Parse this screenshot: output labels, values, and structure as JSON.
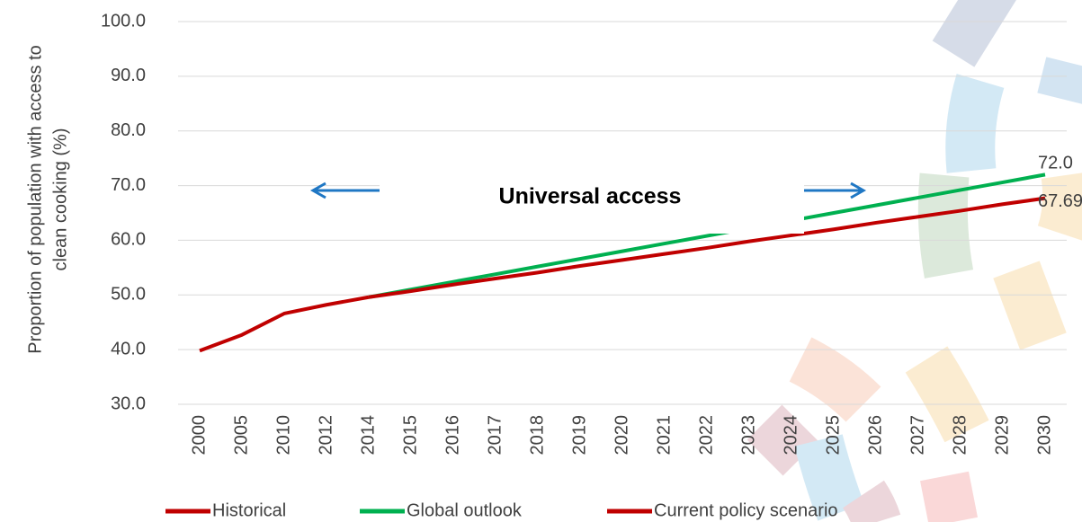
{
  "chart_data": {
    "type": "line",
    "y_label": [
      "Proportion of population with access to",
      "clean cooking (%)"
    ],
    "annotation": "Universal access",
    "categories": [
      "2000",
      "2005",
      "2010",
      "2012",
      "2014",
      "2015",
      "2016",
      "2017",
      "2018",
      "2019",
      "2020",
      "2021",
      "2022",
      "2023",
      "2024",
      "2025",
      "2026",
      "2027",
      "2028",
      "2029",
      "2030"
    ],
    "series": [
      {
        "name": "Historical",
        "color": "#c00000",
        "values": [
          39.8,
          42.7,
          46.6,
          48.2,
          49.6,
          null,
          null,
          null,
          null,
          null,
          null,
          null,
          null,
          null,
          null,
          null,
          null,
          null,
          null,
          null,
          null
        ]
      },
      {
        "name": "Global outlook",
        "color": "#00b050",
        "values": [
          null,
          null,
          null,
          null,
          49.6,
          51.0,
          52.4,
          53.8,
          55.2,
          56.6,
          58.0,
          59.4,
          60.8,
          62.2,
          63.6,
          65.0,
          66.4,
          67.8,
          69.2,
          70.6,
          72.0
        ],
        "value_labels": [
          null,
          null,
          null,
          null,
          null,
          null,
          null,
          null,
          null,
          null,
          null,
          null,
          null,
          null,
          null,
          null,
          null,
          null,
          null,
          null,
          "72.0"
        ]
      },
      {
        "name": "Current policy scenario",
        "color": "#c00000",
        "values": [
          null,
          null,
          null,
          null,
          49.6,
          50.7,
          51.9,
          53.0,
          54.1,
          55.3,
          56.4,
          57.5,
          58.6,
          59.8,
          60.9,
          62.0,
          63.2,
          64.3,
          65.4,
          66.6,
          67.69
        ],
        "value_labels": [
          null,
          null,
          null,
          null,
          null,
          null,
          null,
          null,
          null,
          null,
          null,
          null,
          null,
          null,
          null,
          null,
          null,
          null,
          null,
          null,
          "67.69"
        ]
      }
    ],
    "ylim": [
      30,
      100
    ],
    "yticks": [
      {
        "value": 30,
        "label": "30.0"
      },
      {
        "value": 40,
        "label": "40.0"
      },
      {
        "value": 50,
        "label": "50.0"
      },
      {
        "value": 60,
        "label": "60.0"
      },
      {
        "value": 70,
        "label": "70.0"
      },
      {
        "value": 80,
        "label": "80.0"
      },
      {
        "value": 90,
        "label": "90.0"
      },
      {
        "value": 100,
        "label": "100.0"
      }
    ],
    "grid": true
  }
}
